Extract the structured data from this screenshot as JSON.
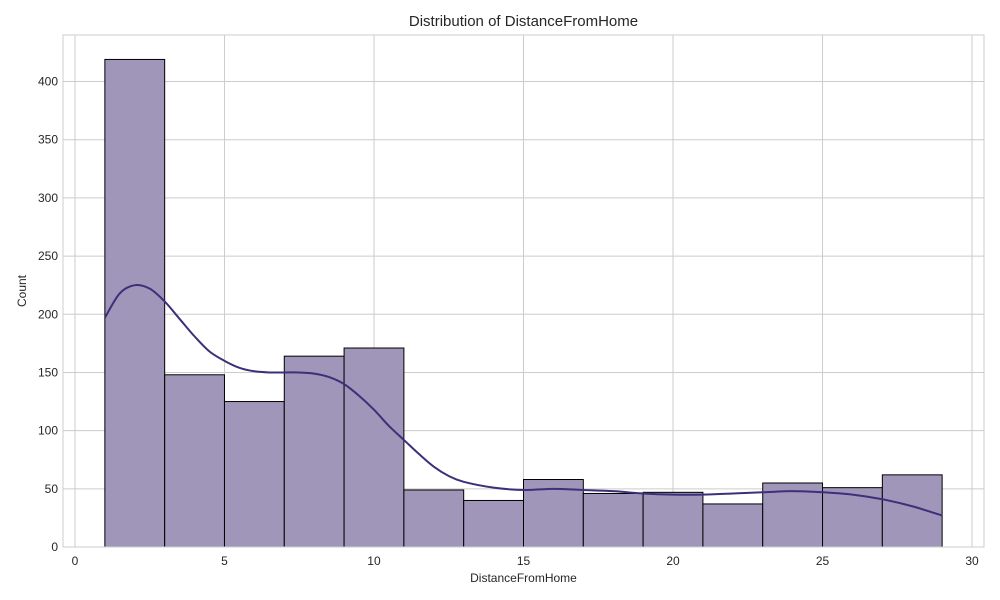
{
  "chart_data": {
    "type": "bar",
    "subtype": "histogram-with-kde",
    "title": "Distribution of DistanceFromHome",
    "xlabel": "DistanceFromHome",
    "ylabel": "Count",
    "xlim": [
      -0.4,
      30.4
    ],
    "ylim": [
      0,
      440
    ],
    "xticks": [
      0,
      5,
      10,
      15,
      20,
      25,
      30
    ],
    "yticks": [
      0,
      50,
      100,
      150,
      200,
      250,
      300,
      350,
      400
    ],
    "grid": true,
    "bins": [
      {
        "x0": 1,
        "x1": 3,
        "count": 419
      },
      {
        "x0": 3,
        "x1": 5,
        "count": 148
      },
      {
        "x0": 5,
        "x1": 7,
        "count": 125
      },
      {
        "x0": 7,
        "x1": 9,
        "count": 164
      },
      {
        "x0": 9,
        "x1": 11,
        "count": 171
      },
      {
        "x0": 11,
        "x1": 13,
        "count": 49
      },
      {
        "x0": 13,
        "x1": 15,
        "count": 40
      },
      {
        "x0": 15,
        "x1": 17,
        "count": 58
      },
      {
        "x0": 17,
        "x1": 19,
        "count": 46
      },
      {
        "x0": 19,
        "x1": 21,
        "count": 47
      },
      {
        "x0": 21,
        "x1": 23,
        "count": 37
      },
      {
        "x0": 23,
        "x1": 25,
        "count": 55
      },
      {
        "x0": 25,
        "x1": 27,
        "count": 51
      },
      {
        "x0": 27,
        "x1": 29,
        "count": 62
      }
    ],
    "kde": {
      "x": [
        1,
        1.5,
        2,
        2.5,
        3,
        3.5,
        4,
        4.5,
        5,
        5.5,
        6,
        6.5,
        7,
        7.5,
        8,
        8.5,
        9,
        9.5,
        10,
        10.5,
        11,
        11.5,
        12,
        12.5,
        13,
        14,
        15,
        16,
        17,
        18,
        19,
        20,
        21,
        22,
        23,
        24,
        25,
        26,
        27,
        28,
        29
      ],
      "y": [
        197,
        218,
        225,
        222,
        211,
        196,
        181,
        168,
        160,
        154,
        151,
        150,
        150,
        150,
        149,
        146,
        140,
        130,
        118,
        104,
        92,
        80,
        69,
        61,
        56,
        51,
        49,
        50,
        49,
        48,
        46,
        45,
        45,
        46,
        47,
        48,
        47,
        45,
        41,
        35,
        27
      ]
    },
    "colors": {
      "bar_fill": "#a096b9",
      "bar_edge": "#000000",
      "kde_line": "#3d2f7a",
      "grid": "#cccccc",
      "background": "#ffffff"
    }
  }
}
